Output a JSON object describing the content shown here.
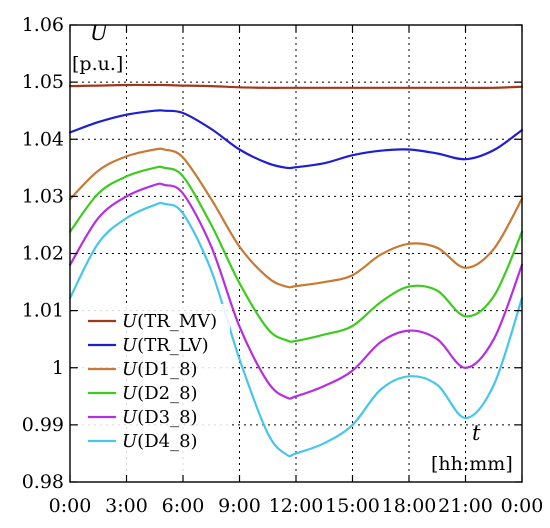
{
  "chart_data": {
    "type": "line",
    "y_symbol": "U",
    "y_unit": "[p.u.]",
    "x_symbol": "t",
    "x_unit": "[hh:mm]",
    "x_ticks": [
      "0:00",
      "3:00",
      "6:00",
      "9:00",
      "12:00",
      "15:00",
      "18:00",
      "21:00",
      "0:00"
    ],
    "y_ticks": [
      "1.06",
      "1.05",
      "1.04",
      "1.03",
      "1.02",
      "1.01",
      "1",
      "0.99",
      "0.98"
    ],
    "xlim": [
      0,
      24
    ],
    "ylim": [
      0.98,
      1.06
    ],
    "grid": true,
    "legend_position": "bottom-left",
    "x": [
      0,
      1.5,
      3,
      4.5,
      5,
      6,
      7.5,
      9,
      10.5,
      11.5,
      12,
      13.5,
      15,
      16.5,
      18,
      19.5,
      21,
      22.5,
      24
    ],
    "series": [
      {
        "name": "U(TR_MV)",
        "legend_sym": "U",
        "legend_rest": "(TR_MV)",
        "color": "#a0391c",
        "values": [
          1.0493,
          1.0494,
          1.0495,
          1.0495,
          1.0495,
          1.0494,
          1.0493,
          1.0491,
          1.049,
          1.049,
          1.049,
          1.049,
          1.049,
          1.049,
          1.049,
          1.049,
          1.049,
          1.049,
          1.0492
        ]
      },
      {
        "name": "U(TR_LV)",
        "legend_sym": "U",
        "legend_rest": "(TR_LV)",
        "color": "#1f1fd1",
        "values": [
          1.0412,
          1.043,
          1.0443,
          1.045,
          1.045,
          1.0446,
          1.0418,
          1.0382,
          1.0358,
          1.035,
          1.0351,
          1.0358,
          1.0372,
          1.038,
          1.0382,
          1.0375,
          1.0365,
          1.0381,
          1.0416
        ]
      },
      {
        "name": "U(D1_8)",
        "legend_sym": "U",
        "legend_rest": "(D1_8)",
        "color": "#c87933",
        "values": [
          1.0295,
          1.0345,
          1.037,
          1.0382,
          1.0382,
          1.0368,
          1.0295,
          1.0212,
          1.0158,
          1.0142,
          1.0143,
          1.015,
          1.0162,
          1.0198,
          1.0217,
          1.021,
          1.0175,
          1.0208,
          1.0296
        ]
      },
      {
        "name": "U(D2_8)",
        "legend_sym": "U",
        "legend_rest": "(D2_8)",
        "color": "#3ccb1f",
        "values": [
          1.0238,
          1.0305,
          1.0335,
          1.035,
          1.035,
          1.0335,
          1.025,
          1.0148,
          1.0068,
          1.0048,
          1.0047,
          1.0058,
          1.0073,
          1.0115,
          1.0142,
          1.0135,
          1.009,
          1.0125,
          1.0238
        ]
      },
      {
        "name": "U(D3_8)",
        "legend_sym": "U",
        "legend_rest": "(D3_8)",
        "color": "#b62ee0",
        "values": [
          1.018,
          1.0262,
          1.03,
          1.032,
          1.032,
          1.0305,
          1.0212,
          1.0072,
          0.9975,
          0.9948,
          0.995,
          0.9968,
          0.9995,
          1.0045,
          1.0065,
          1.005,
          1.0,
          1.005,
          1.018
        ]
      },
      {
        "name": "U(D4_8)",
        "legend_sym": "U",
        "legend_rest": "(D4_8)",
        "color": "#46c6ec",
        "values": [
          1.0122,
          1.0218,
          1.0262,
          1.0285,
          1.0287,
          1.027,
          1.017,
          1.0015,
          0.9885,
          0.9848,
          0.985,
          0.9868,
          0.99,
          0.9962,
          0.9985,
          0.997,
          0.9912,
          0.997,
          1.0122
        ]
      }
    ]
  }
}
